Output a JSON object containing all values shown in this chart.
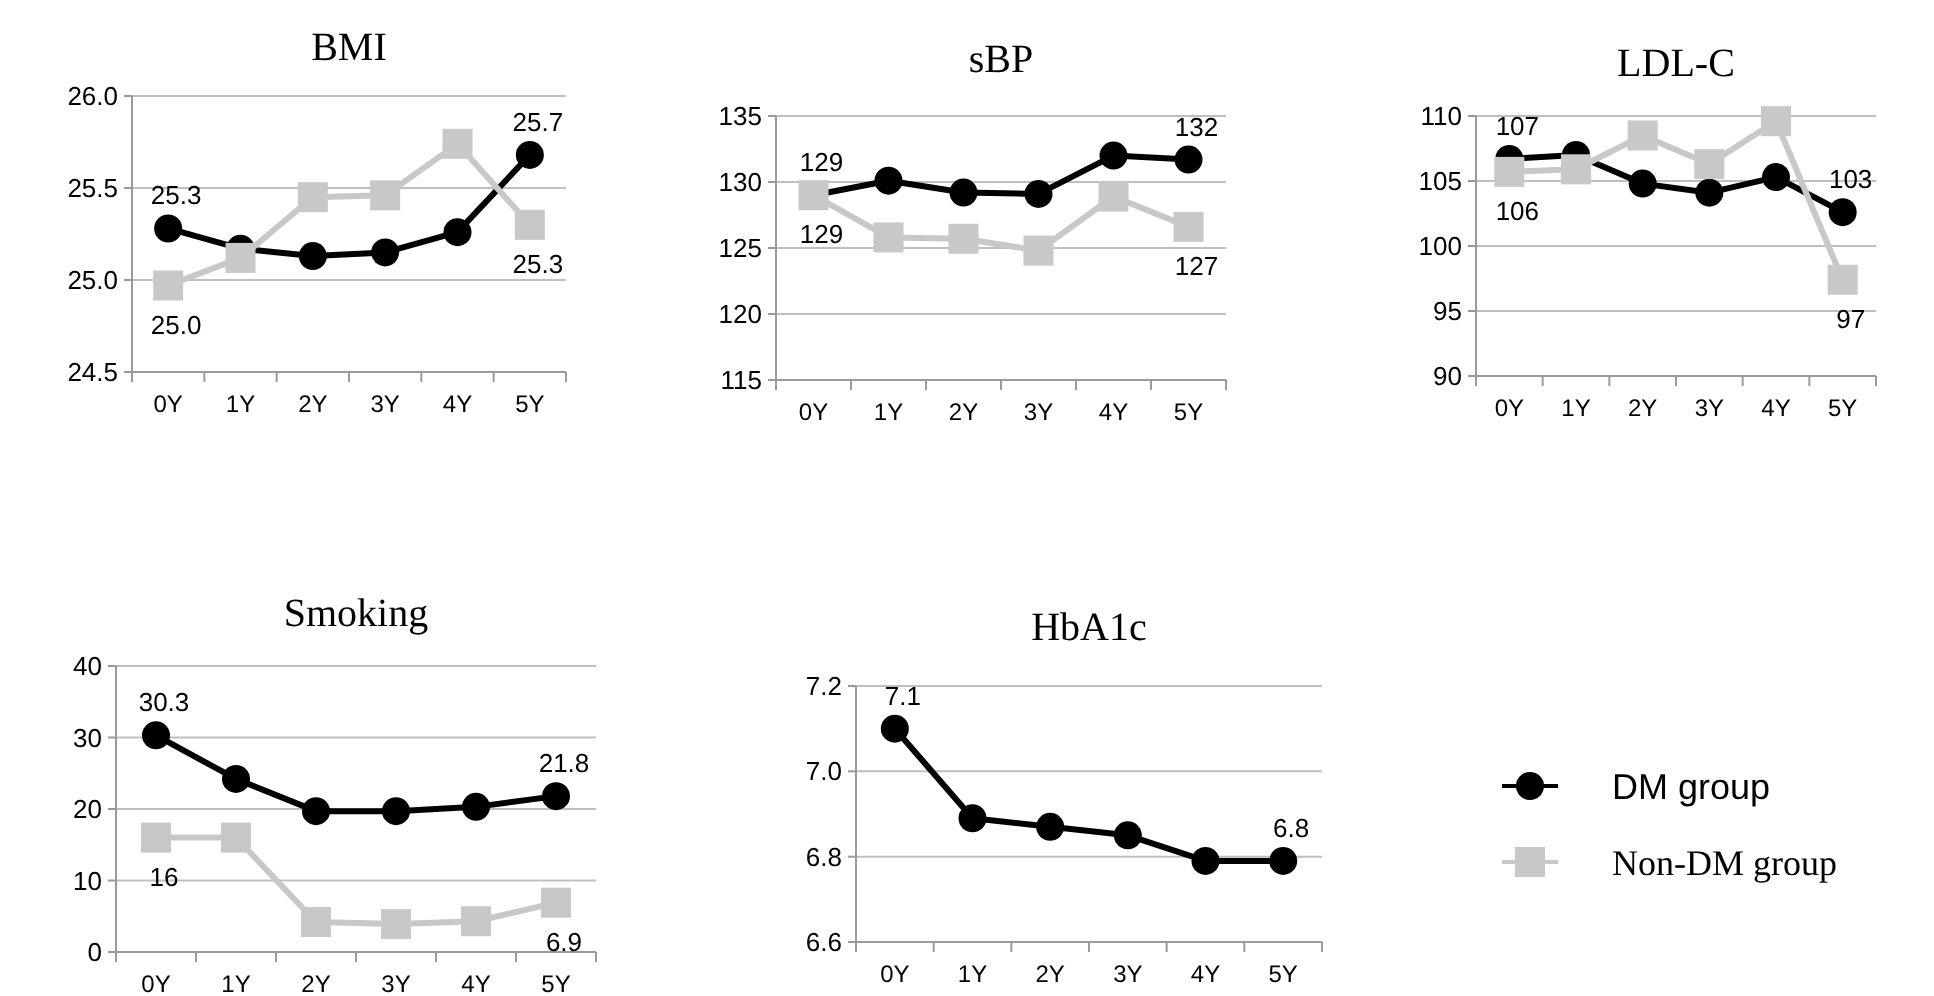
{
  "chart_data": [
    {
      "type": "line",
      "title": "BMI",
      "categories": [
        "0Y",
        "1Y",
        "2Y",
        "3Y",
        "4Y",
        "5Y"
      ],
      "ylim": [
        24.5,
        26
      ],
      "yticks": [
        {
          "value": 24.5,
          "label": "24.5"
        },
        {
          "value": 25,
          "label": "25.0"
        },
        {
          "value": 25.5,
          "label": "25.5"
        },
        {
          "value": 26,
          "label": "26.0"
        }
      ],
      "grid": "y",
      "legend": false,
      "series": [
        {
          "color": "#000000",
          "marker": "circle",
          "values": [
            25.28,
            25.17,
            25.13,
            25.15,
            25.26,
            25.68
          ],
          "value_labels": [
            "25.3",
            null,
            null,
            null,
            null,
            "25.7"
          ]
        },
        {
          "color": "#c8c8c8",
          "marker": "square",
          "values": [
            24.97,
            25.12,
            25.45,
            25.46,
            25.74,
            25.3
          ],
          "value_labels": [
            "25.0",
            null,
            null,
            null,
            null,
            "25.3"
          ]
        }
      ]
    },
    {
      "type": "line",
      "title": "sBP",
      "categories": [
        "0Y",
        "1Y",
        "2Y",
        "3Y",
        "4Y",
        "5Y"
      ],
      "ylim": [
        115,
        135
      ],
      "yticks": [
        115,
        120,
        125,
        130,
        135
      ],
      "grid": "y",
      "legend": false,
      "series": [
        {
          "color": "#000000",
          "marker": "circle",
          "values": [
            129,
            130.1,
            129.2,
            129.1,
            132,
            131.7
          ],
          "value_labels": [
            "129",
            null,
            null,
            null,
            null,
            "132"
          ]
        },
        {
          "color": "#c8c8c8",
          "marker": "square",
          "values": [
            129,
            125.8,
            125.7,
            124.8,
            128.9,
            126.6
          ],
          "value_labels": [
            "129",
            null,
            null,
            null,
            null,
            "127"
          ]
        }
      ]
    },
    {
      "type": "line",
      "title": "LDL-C",
      "categories": [
        "0Y",
        "1Y",
        "2Y",
        "3Y",
        "4Y",
        "5Y"
      ],
      "ylim": [
        90,
        110
      ],
      "yticks": [
        90,
        95,
        100,
        105,
        110
      ],
      "grid": "y",
      "legend": false,
      "series": [
        {
          "color": "#000000",
          "marker": "circle",
          "values": [
            106.7,
            107,
            104.8,
            104.1,
            105.3,
            102.6
          ],
          "value_labels": [
            "107",
            null,
            null,
            null,
            null,
            "103"
          ]
        },
        {
          "color": "#c8c8c8",
          "marker": "square",
          "values": [
            105.7,
            105.9,
            108.5,
            106.3,
            109.6,
            97.4
          ],
          "value_labels": [
            "106",
            null,
            null,
            null,
            null,
            "97"
          ]
        }
      ]
    },
    {
      "type": "line",
      "title": "Smoking",
      "categories": [
        "0Y",
        "1Y",
        "2Y",
        "3Y",
        "4Y",
        "5Y"
      ],
      "ylim": [
        0,
        40
      ],
      "yticks": [
        0,
        10,
        20,
        30,
        40
      ],
      "grid": "y",
      "legend": false,
      "series": [
        {
          "color": "#000000",
          "marker": "circle",
          "values": [
            30.3,
            24.2,
            19.7,
            19.7,
            20.3,
            21.8
          ],
          "value_labels": [
            "30.3",
            null,
            null,
            null,
            null,
            "21.8"
          ]
        },
        {
          "color": "#c8c8c8",
          "marker": "square",
          "values": [
            16,
            16,
            4.2,
            3.9,
            4.3,
            6.9
          ],
          "value_labels": [
            "16",
            null,
            null,
            null,
            null,
            "6.9"
          ]
        }
      ]
    },
    {
      "type": "line",
      "title": "HbA1c",
      "categories": [
        "0Y",
        "1Y",
        "2Y",
        "3Y",
        "4Y",
        "5Y"
      ],
      "ylim": [
        6.6,
        7.2
      ],
      "yticks": [
        {
          "value": 6.6,
          "label": "6.6"
        },
        {
          "value": 6.8,
          "label": "6.8"
        },
        {
          "value": 7,
          "label": "7.0"
        },
        {
          "value": 7.2,
          "label": "7.2"
        }
      ],
      "grid": "y",
      "legend": "right",
      "series": [
        {
          "name": "DM group",
          "color": "#000000",
          "marker": "circle",
          "values": [
            7.1,
            6.89,
            6.87,
            6.85,
            6.79,
            6.79
          ],
          "value_labels": [
            "7.1",
            null,
            null,
            null,
            null,
            "6.8"
          ]
        },
        {
          "name": "Non-DM group",
          "color": "#c8c8c8",
          "marker": "square",
          "values": [
            null,
            null,
            null,
            null,
            null,
            null
          ],
          "value_labels": [
            null,
            null,
            null,
            null,
            null,
            null
          ]
        }
      ]
    }
  ]
}
